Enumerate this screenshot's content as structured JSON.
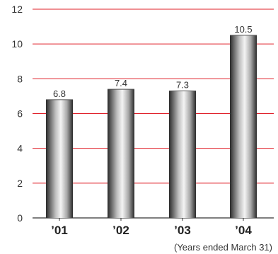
{
  "chart_data": {
    "type": "bar",
    "categories": [
      "’01",
      "’02",
      "’03",
      "’04"
    ],
    "values": [
      6.8,
      7.4,
      7.3,
      10.5
    ],
    "data_labels": [
      "6.8",
      "7.4",
      "7.3",
      "10.5"
    ],
    "title": "",
    "xlabel": "",
    "ylabel": "",
    "ylim": [
      0,
      12
    ],
    "yticks": [
      0,
      2,
      4,
      6,
      8,
      10,
      12
    ],
    "ytick_labels": [
      "0",
      "2",
      "4",
      "6",
      "8",
      "10",
      "12"
    ],
    "grid": true,
    "legend": "none",
    "footnote": "(Years ended March 31)"
  },
  "colors": {
    "gridline": "#e0202a",
    "axis": "#333333",
    "bar_dark": "#2a2a2a",
    "bar_light": "#f4f4f4"
  }
}
